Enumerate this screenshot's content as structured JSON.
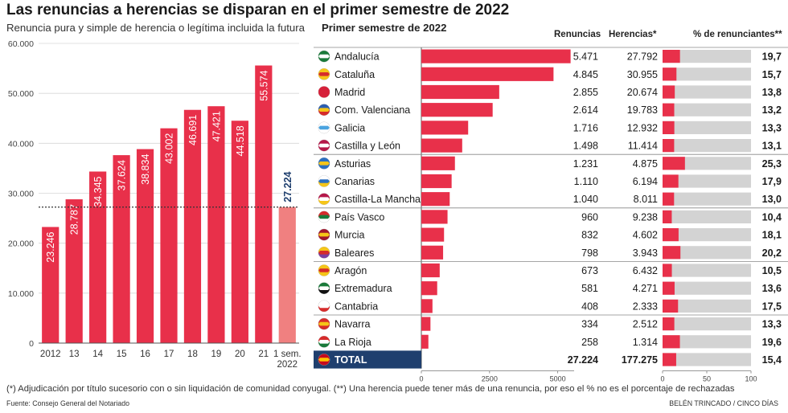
{
  "header": {
    "title": "Las renuncias a herencias se disparan en el primer semestre de 2022",
    "subtitle": "Renuncia pura y simple de herencia o legítima incluida la futura",
    "right_title": "Primer semestre de 2022"
  },
  "columns": {
    "renuncias": "Renuncias",
    "herencias": "Herencias*",
    "pct": "% de renunciantes**"
  },
  "chart_data": [
    {
      "type": "bar",
      "categories": [
        "2012",
        "13",
        "14",
        "15",
        "16",
        "17",
        "18",
        "19",
        "20",
        "21",
        "1 sem.\n2022"
      ],
      "values": [
        23246,
        28787,
        34345,
        37624,
        38834,
        43002,
        46691,
        47421,
        44518,
        55574,
        27224
      ],
      "value_labels": [
        "23.246",
        "28.787",
        "34.345",
        "37.624",
        "38.834",
        "43.002",
        "46.691",
        "47.421",
        "44.518",
        "55.574",
        "27.224"
      ],
      "ylim": [
        0,
        60000
      ],
      "yticks": [
        0,
        10000,
        20000,
        30000,
        40000,
        50000,
        60000
      ],
      "ytick_labels": [
        "0",
        "10.000",
        "20.000",
        "30.000",
        "40.000",
        "50.000",
        "60.000"
      ],
      "reference_line": 27224,
      "colors": {
        "bar": "#e8304a",
        "highlight": "#f08080",
        "reference": "#333333"
      }
    },
    {
      "type": "table",
      "rows": [
        {
          "region": "Andalucía",
          "flag": "andalucia-flag-icon",
          "renuncias": 5471,
          "renuncias_label": "5.471",
          "herencias": "27.792",
          "pct": 19.7,
          "pct_label": "19,7"
        },
        {
          "region": "Cataluña",
          "flag": "cataluna-flag-icon",
          "renuncias": 4845,
          "renuncias_label": "4.845",
          "herencias": "30.955",
          "pct": 15.7,
          "pct_label": "15,7"
        },
        {
          "region": "Madrid",
          "flag": "madrid-flag-icon",
          "renuncias": 2855,
          "renuncias_label": "2.855",
          "herencias": "20.674",
          "pct": 13.8,
          "pct_label": "13,8"
        },
        {
          "region": "Com. Valenciana",
          "flag": "valenciana-flag-icon",
          "renuncias": 2614,
          "renuncias_label": "2.614",
          "herencias": "19.783",
          "pct": 13.2,
          "pct_label": "13,2"
        },
        {
          "region": "Galicia",
          "flag": "galicia-flag-icon",
          "renuncias": 1716,
          "renuncias_label": "1.716",
          "herencias": "12.932",
          "pct": 13.3,
          "pct_label": "13,3"
        },
        {
          "region": "Castilla y León",
          "flag": "castilla-leon-flag-icon",
          "renuncias": 1498,
          "renuncias_label": "1.498",
          "herencias": "11.414",
          "pct": 13.1,
          "pct_label": "13,1"
        },
        {
          "region": "Asturias",
          "flag": "asturias-flag-icon",
          "renuncias": 1231,
          "renuncias_label": "1.231",
          "herencias": "4.875",
          "pct": 25.3,
          "pct_label": "25,3"
        },
        {
          "region": "Canarias",
          "flag": "canarias-flag-icon",
          "renuncias": 1110,
          "renuncias_label": "1.110",
          "herencias": "6.194",
          "pct": 17.9,
          "pct_label": "17,9"
        },
        {
          "region": "Castilla-La Mancha",
          "flag": "castilla-mancha-flag-icon",
          "renuncias": 1040,
          "renuncias_label": "1.040",
          "herencias": "8.011",
          "pct": 13.0,
          "pct_label": "13,0"
        },
        {
          "region": "País Vasco",
          "flag": "pais-vasco-flag-icon",
          "renuncias": 960,
          "renuncias_label": "960",
          "herencias": "9.238",
          "pct": 10.4,
          "pct_label": "10,4"
        },
        {
          "region": "Murcia",
          "flag": "murcia-flag-icon",
          "renuncias": 832,
          "renuncias_label": "832",
          "herencias": "4.602",
          "pct": 18.1,
          "pct_label": "18,1"
        },
        {
          "region": "Baleares",
          "flag": "baleares-flag-icon",
          "renuncias": 798,
          "renuncias_label": "798",
          "herencias": "3.943",
          "pct": 20.2,
          "pct_label": "20,2"
        },
        {
          "region": "Aragón",
          "flag": "aragon-flag-icon",
          "renuncias": 673,
          "renuncias_label": "673",
          "herencias": "6.432",
          "pct": 10.5,
          "pct_label": "10,5"
        },
        {
          "region": "Extremadura",
          "flag": "extremadura-flag-icon",
          "renuncias": 581,
          "renuncias_label": "581",
          "herencias": "4.271",
          "pct": 13.6,
          "pct_label": "13,6"
        },
        {
          "region": "Cantabria",
          "flag": "cantabria-flag-icon",
          "renuncias": 408,
          "renuncias_label": "408",
          "herencias": "2.333",
          "pct": 17.5,
          "pct_label": "17,5"
        },
        {
          "region": "Navarra",
          "flag": "navarra-flag-icon",
          "renuncias": 334,
          "renuncias_label": "334",
          "herencias": "2.512",
          "pct": 13.3,
          "pct_label": "13,3"
        },
        {
          "region": "La Rioja",
          "flag": "la-rioja-flag-icon",
          "renuncias": 258,
          "renuncias_label": "258",
          "herencias": "1.314",
          "pct": 19.6,
          "pct_label": "19,6"
        }
      ],
      "total": {
        "region": "TOTAL",
        "flag": "espana-flag-icon",
        "renuncias": 27224,
        "renuncias_label": "27.224",
        "herencias": "177.275",
        "pct": 15.4,
        "pct_label": "15,4"
      },
      "renuncias_axis": {
        "max": 5600,
        "ticks": [
          0,
          2500,
          5000
        ],
        "tick_labels": [
          "0",
          "2500",
          "5000"
        ]
      },
      "pct_axis": {
        "max": 100,
        "ticks": [
          0,
          50,
          100
        ],
        "tick_labels": [
          "0",
          "50",
          "100"
        ]
      },
      "colors": {
        "bar": "#e8304a",
        "track": "#d3d3d3",
        "total_bg": "#1f3f6e",
        "separator": "#888888"
      }
    }
  ],
  "footer": {
    "footnote": "(*) Adjudicación por título sucesorio con o sin liquidación de comunidad conyugal. (**) Una herencia puede tener más de una renuncia, por eso el % no es el porcentaje de rechazadas",
    "source": "Fuente: Consejo General del Notariado",
    "credit": "BELÉN TRINCADO / CINCO DÍAS"
  }
}
